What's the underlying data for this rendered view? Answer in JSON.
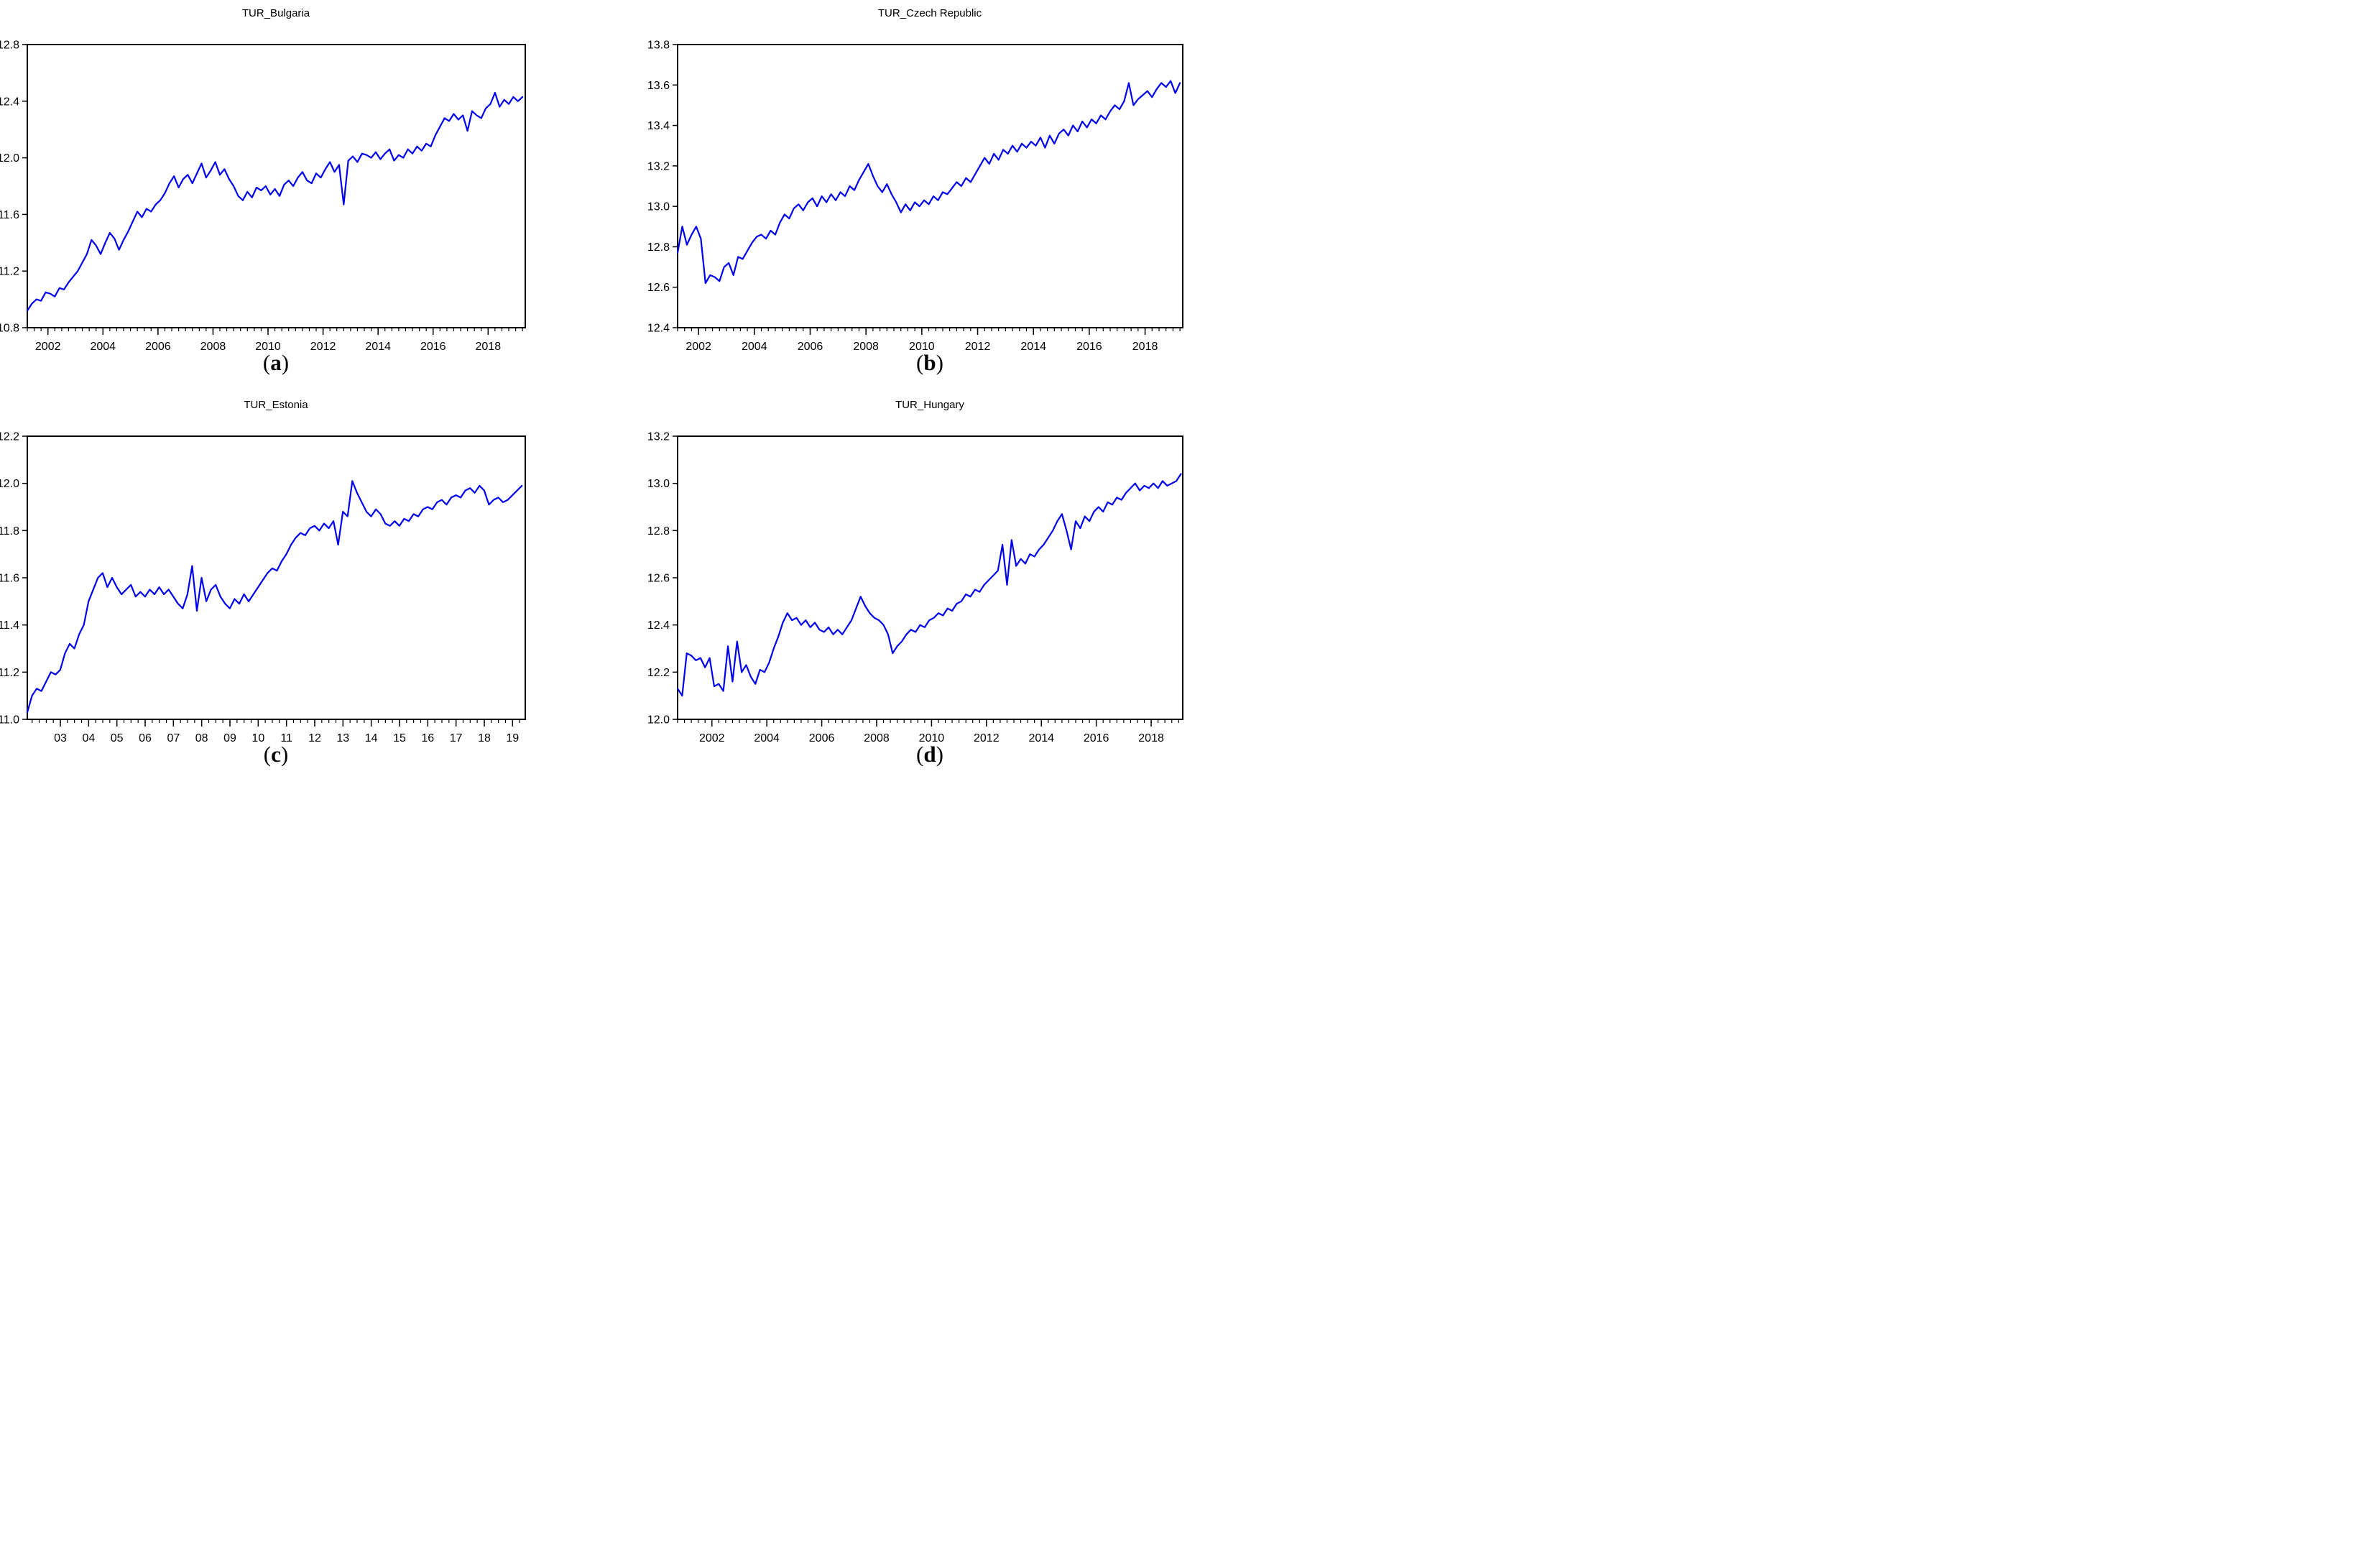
{
  "page": {
    "background": "#ffffff"
  },
  "colors": {
    "line": "#0000EE",
    "axis": "#000000",
    "text": "#000000"
  },
  "chart_data": [
    {
      "type": "line",
      "title": "TUR_Bulgaria",
      "caption_open": "(",
      "caption_letter": "a",
      "caption_close": ")",
      "xlabel": "",
      "ylabel": "",
      "grid": false,
      "legend": false,
      "xlim": [
        2001.25,
        2019.35
      ],
      "ylim": [
        10.8,
        12.8
      ],
      "ytick_values": [
        10.8,
        11.2,
        11.6,
        12.0,
        12.4,
        12.8
      ],
      "ytick_labels": [
        "10.8",
        "11.2",
        "11.6",
        "12.0",
        "12.4",
        "12.8"
      ],
      "xtick_values": [
        2002,
        2004,
        2006,
        2008,
        2010,
        2012,
        2014,
        2016,
        2018
      ],
      "xtick_labels": [
        "2002",
        "2004",
        "2006",
        "2008",
        "2010",
        "2012",
        "2014",
        "2016",
        "2018"
      ],
      "minor_tick_step": 0.25,
      "line_color": "#0000EE",
      "series": {
        "x_start": 2001.25,
        "x_step": 0.166667,
        "values": [
          10.92,
          10.97,
          11.0,
          10.99,
          11.05,
          11.04,
          11.02,
          11.08,
          11.07,
          11.12,
          11.16,
          11.2,
          11.26,
          11.32,
          11.42,
          11.38,
          11.32,
          11.4,
          11.47,
          11.43,
          11.35,
          11.42,
          11.48,
          11.55,
          11.62,
          11.58,
          11.64,
          11.62,
          11.67,
          11.7,
          11.75,
          11.82,
          11.87,
          11.79,
          11.85,
          11.88,
          11.82,
          11.89,
          11.96,
          11.86,
          11.91,
          11.97,
          11.88,
          11.92,
          11.85,
          11.8,
          11.73,
          11.7,
          11.76,
          11.72,
          11.79,
          11.77,
          11.8,
          11.74,
          11.78,
          11.73,
          11.81,
          11.84,
          11.8,
          11.86,
          11.9,
          11.84,
          11.82,
          11.89,
          11.86,
          11.92,
          11.97,
          11.9,
          11.95,
          11.67,
          11.98,
          12.01,
          11.97,
          12.03,
          12.02,
          12.0,
          12.04,
          11.99,
          12.03,
          12.06,
          11.98,
          12.02,
          12.0,
          12.06,
          12.03,
          12.08,
          12.05,
          12.1,
          12.08,
          12.16,
          12.22,
          12.28,
          12.26,
          12.31,
          12.27,
          12.3,
          12.19,
          12.33,
          12.3,
          12.28,
          12.35,
          12.38,
          12.46,
          12.36,
          12.41,
          12.38,
          12.43,
          12.4,
          12.43
        ]
      }
    },
    {
      "type": "line",
      "title": "TUR_Czech Republic",
      "caption_open": "(",
      "caption_letter": "b",
      "caption_close": ")",
      "xlabel": "",
      "ylabel": "",
      "grid": false,
      "legend": false,
      "xlim": [
        2001.25,
        2019.35
      ],
      "ylim": [
        12.4,
        13.8
      ],
      "ytick_values": [
        12.4,
        12.6,
        12.8,
        13.0,
        13.2,
        13.4,
        13.6,
        13.8
      ],
      "ytick_labels": [
        "12.4",
        "12.6",
        "12.8",
        "13.0",
        "13.2",
        "13.4",
        "13.6",
        "13.8"
      ],
      "xtick_values": [
        2002,
        2004,
        2006,
        2008,
        2010,
        2012,
        2014,
        2016,
        2018
      ],
      "xtick_labels": [
        "2002",
        "2004",
        "2006",
        "2008",
        "2010",
        "2012",
        "2014",
        "2016",
        "2018"
      ],
      "minor_tick_step": 0.25,
      "line_color": "#0000EE",
      "series": {
        "x_start": 2001.25,
        "x_step": 0.166667,
        "values": [
          12.77,
          12.9,
          12.81,
          12.86,
          12.9,
          12.84,
          12.62,
          12.66,
          12.65,
          12.63,
          12.7,
          12.72,
          12.66,
          12.75,
          12.74,
          12.78,
          12.82,
          12.85,
          12.86,
          12.84,
          12.88,
          12.86,
          12.92,
          12.96,
          12.94,
          12.99,
          13.01,
          12.98,
          13.02,
          13.04,
          13.0,
          13.05,
          13.02,
          13.06,
          13.03,
          13.07,
          13.05,
          13.1,
          13.08,
          13.13,
          13.17,
          13.21,
          13.15,
          13.1,
          13.07,
          13.11,
          13.06,
          13.02,
          12.97,
          13.01,
          12.98,
          13.02,
          13.0,
          13.03,
          13.01,
          13.05,
          13.03,
          13.07,
          13.06,
          13.09,
          13.12,
          13.1,
          13.14,
          13.12,
          13.16,
          13.2,
          13.24,
          13.21,
          13.26,
          13.23,
          13.28,
          13.26,
          13.3,
          13.27,
          13.31,
          13.29,
          13.32,
          13.3,
          13.34,
          13.29,
          13.35,
          13.31,
          13.36,
          13.38,
          13.35,
          13.4,
          13.37,
          13.42,
          13.39,
          13.43,
          13.41,
          13.45,
          13.43,
          13.47,
          13.5,
          13.48,
          13.52,
          13.61,
          13.5,
          13.53,
          13.55,
          13.57,
          13.54,
          13.58,
          13.61,
          13.59,
          13.62,
          13.56,
          13.61
        ]
      }
    },
    {
      "type": "line",
      "title": "TUR_Estonia",
      "caption_open": "(",
      "caption_letter": "c",
      "caption_close": ")",
      "xlabel": "",
      "ylabel": "",
      "grid": false,
      "legend": false,
      "xlim": [
        2001.83,
        2019.45
      ],
      "ylim": [
        11.0,
        12.2
      ],
      "ytick_values": [
        11.0,
        11.2,
        11.4,
        11.6,
        11.8,
        12.0,
        12.2
      ],
      "ytick_labels": [
        "11.0",
        "11.2",
        "11.4",
        "11.6",
        "11.8",
        "12.0",
        "12.2"
      ],
      "xtick_values": [
        2003,
        2004,
        2005,
        2006,
        2007,
        2008,
        2009,
        2010,
        2011,
        2012,
        2013,
        2014,
        2015,
        2016,
        2017,
        2018,
        2019
      ],
      "xtick_labels": [
        "03",
        "04",
        "05",
        "06",
        "07",
        "08",
        "09",
        "10",
        "11",
        "12",
        "13",
        "14",
        "15",
        "16",
        "17",
        "18",
        "19"
      ],
      "minor_tick_step": 0.25,
      "line_color": "#0000EE",
      "series": {
        "x_start": 2001.83,
        "x_step": 0.166667,
        "values": [
          11.03,
          11.1,
          11.13,
          11.12,
          11.16,
          11.2,
          11.19,
          11.21,
          11.28,
          11.32,
          11.3,
          11.36,
          11.4,
          11.5,
          11.55,
          11.6,
          11.62,
          11.56,
          11.6,
          11.56,
          11.53,
          11.55,
          11.57,
          11.52,
          11.54,
          11.52,
          11.55,
          11.53,
          11.56,
          11.53,
          11.55,
          11.52,
          11.49,
          11.47,
          11.53,
          11.65,
          11.46,
          11.6,
          11.5,
          11.55,
          11.57,
          11.52,
          11.49,
          11.47,
          11.51,
          11.49,
          11.53,
          11.5,
          11.53,
          11.56,
          11.59,
          11.62,
          11.64,
          11.63,
          11.67,
          11.7,
          11.74,
          11.77,
          11.79,
          11.78,
          11.81,
          11.82,
          11.8,
          11.83,
          11.81,
          11.84,
          11.74,
          11.88,
          11.86,
          12.01,
          11.96,
          11.92,
          11.88,
          11.86,
          11.89,
          11.87,
          11.83,
          11.82,
          11.84,
          11.82,
          11.85,
          11.84,
          11.87,
          11.86,
          11.89,
          11.9,
          11.89,
          11.92,
          11.93,
          11.91,
          11.94,
          11.95,
          11.94,
          11.97,
          11.98,
          11.96,
          11.99,
          11.97,
          11.91,
          11.93,
          11.94,
          11.92,
          11.93,
          11.95,
          11.97,
          11.99
        ]
      }
    },
    {
      "type": "line",
      "title": "TUR_Hungary",
      "caption_open": "(",
      "caption_letter": "d",
      "caption_close": ")",
      "xlabel": "",
      "ylabel": "",
      "grid": false,
      "legend": false,
      "xlim": [
        2000.75,
        2019.15
      ],
      "ylim": [
        12.0,
        13.2
      ],
      "ytick_values": [
        12.0,
        12.2,
        12.4,
        12.6,
        12.8,
        13.0,
        13.2
      ],
      "ytick_labels": [
        "12.0",
        "12.2",
        "12.4",
        "12.6",
        "12.8",
        "13.0",
        "13.2"
      ],
      "xtick_values": [
        2002,
        2004,
        2006,
        2008,
        2010,
        2012,
        2014,
        2016,
        2018
      ],
      "xtick_labels": [
        "2002",
        "2004",
        "2006",
        "2008",
        "2010",
        "2012",
        "2014",
        "2016",
        "2018"
      ],
      "minor_tick_step": 0.25,
      "line_color": "#0000EE",
      "series": {
        "x_start": 2000.75,
        "x_step": 0.166667,
        "values": [
          12.13,
          12.1,
          12.28,
          12.27,
          12.25,
          12.26,
          12.22,
          12.26,
          12.14,
          12.15,
          12.12,
          12.31,
          12.16,
          12.33,
          12.2,
          12.23,
          12.18,
          12.15,
          12.21,
          12.2,
          12.24,
          12.3,
          12.35,
          12.41,
          12.45,
          12.42,
          12.43,
          12.4,
          12.42,
          12.39,
          12.41,
          12.38,
          12.37,
          12.39,
          12.36,
          12.38,
          12.36,
          12.39,
          12.42,
          12.47,
          12.52,
          12.48,
          12.45,
          12.43,
          12.42,
          12.4,
          12.36,
          12.28,
          12.31,
          12.33,
          12.36,
          12.38,
          12.37,
          12.4,
          12.39,
          12.42,
          12.43,
          12.45,
          12.44,
          12.47,
          12.46,
          12.49,
          12.5,
          12.53,
          12.52,
          12.55,
          12.54,
          12.57,
          12.59,
          12.61,
          12.63,
          12.74,
          12.57,
          12.76,
          12.65,
          12.68,
          12.66,
          12.7,
          12.69,
          12.72,
          12.74,
          12.77,
          12.8,
          12.84,
          12.87,
          12.8,
          12.72,
          12.84,
          12.81,
          12.86,
          12.84,
          12.88,
          12.9,
          12.88,
          12.92,
          12.91,
          12.94,
          12.93,
          12.96,
          12.98,
          13.0,
          12.97,
          12.99,
          12.98,
          13.0,
          12.98,
          13.01,
          12.99,
          13.0,
          13.01,
          13.04
        ]
      }
    }
  ]
}
